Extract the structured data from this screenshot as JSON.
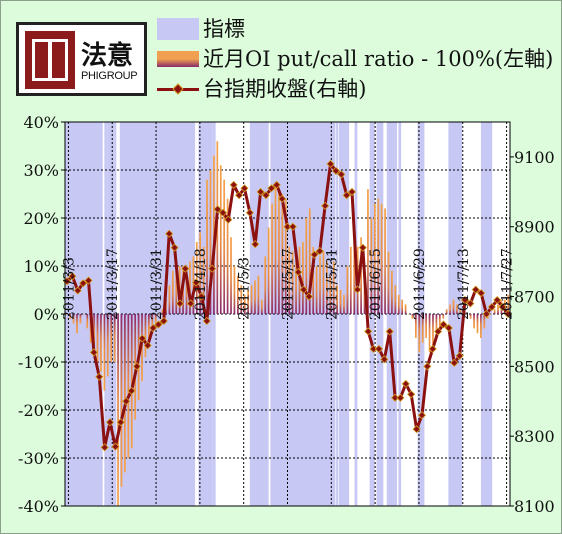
{
  "logo": {
    "name": "法意",
    "sub": "PHIGROUP"
  },
  "legend": {
    "band_label": "指標",
    "bar_label": "近月OI put/call ratio - 100%(左軸)",
    "line_label": "台指期收盤(右軸)"
  },
  "chart_data": {
    "type": "bar",
    "x_tick_labels": [
      "2011/3/3",
      "2011/3/17",
      "2011/3/31",
      "2011/4/18",
      "2011/5/3",
      "2011/5/17",
      "2011/5/31",
      "2011/6/15",
      "2011/6/29",
      "2011/7/13",
      "2011/7/27"
    ],
    "y_left": {
      "min": -40,
      "max": 40,
      "step": 10,
      "unit": "%"
    },
    "y_left_tick_labels": [
      "-40%",
      "-30%",
      "-20%",
      "-10%",
      "0%",
      "10%",
      "20%",
      "30%",
      "40%"
    ],
    "y_right": {
      "min": 8100,
      "max": 9200
    },
    "y_right_tick_labels": [
      "8100",
      "8300",
      "8500",
      "8700",
      "8900",
      "9100"
    ],
    "y_right_tick_values": [
      8100,
      8300,
      8500,
      8700,
      8900,
      9100
    ],
    "series": [
      {
        "name": "指標",
        "type": "band",
        "color": "#c8c8f5",
        "ranges": [
          [
            0,
            11
          ],
          [
            11.5,
            12.5
          ],
          [
            12.5,
            14.5
          ],
          [
            14.5,
            15
          ],
          [
            16,
            38
          ],
          [
            39,
            43
          ],
          [
            43,
            44
          ],
          [
            54,
            59.5
          ],
          [
            60,
            79
          ],
          [
            79.2,
            79.8
          ],
          [
            80,
            83
          ],
          [
            84.6,
            85.4
          ],
          [
            89,
            90.5
          ],
          [
            91,
            93
          ],
          [
            94,
            97
          ],
          [
            97.4,
            98.2
          ],
          [
            103,
            105
          ],
          [
            112,
            116
          ],
          [
            121.5,
            124.8
          ]
        ]
      },
      {
        "name": "近月OI put/call ratio - 100%(左軸)",
        "type": "bar",
        "values": [
          0,
          -1,
          -2,
          -4,
          -2,
          0,
          -3,
          -6,
          -8,
          -10,
          -12,
          -16,
          -13,
          -10,
          -10,
          -40,
          -36,
          -33,
          -30,
          -28,
          -22,
          -18,
          -14,
          -9,
          -6,
          -4,
          -2,
          0,
          1,
          3,
          6,
          9,
          9,
          10,
          10,
          10,
          11,
          12,
          15,
          17,
          14,
          28,
          30,
          33,
          36,
          31,
          28,
          24,
          16,
          10,
          8,
          6,
          4,
          5,
          6,
          7,
          8,
          3,
          12,
          18,
          23,
          27,
          26,
          25,
          24,
          14,
          13,
          12,
          14,
          15,
          20,
          22,
          14,
          10,
          12,
          13,
          11,
          8,
          11,
          6,
          5,
          4,
          10,
          14,
          16,
          14,
          16,
          10,
          26,
          20,
          23,
          24,
          23,
          22,
          13,
          9,
          6,
          4,
          3,
          2,
          0,
          -1,
          -5,
          -8,
          -6,
          -5,
          -8,
          -7,
          -5,
          -3,
          -1,
          1,
          2,
          3,
          2,
          1,
          1,
          0,
          -1,
          -3,
          -4,
          -5,
          -3,
          -1,
          0,
          1,
          2,
          3,
          3,
          4
        ]
      },
      {
        "name": "台指期收盤(右軸)",
        "type": "line",
        "color": "#8b1010",
        "values": [
          8744,
          8758,
          8717,
          8738,
          8746,
          8540,
          8470,
          8268,
          8340,
          8270,
          8340,
          8400,
          8430,
          8500,
          8580,
          8560,
          8610,
          8620,
          8630,
          8880,
          8840,
          8680,
          8780,
          8680,
          8740,
          8700,
          8630,
          8780,
          8950,
          8940,
          8920,
          9020,
          8990,
          9010,
          8940,
          8850,
          9000,
          8990,
          9010,
          9020,
          8980,
          8900,
          8900,
          8770,
          8720,
          8700,
          8820,
          8830,
          8960,
          9080,
          9060,
          9050,
          8990,
          9000,
          8720,
          8840,
          8600,
          8550,
          8550,
          8520,
          8600,
          8410,
          8410,
          8450,
          8420,
          8320,
          8360,
          8500,
          8550,
          8600,
          8620,
          8610,
          8510,
          8530,
          8690,
          8680,
          8720,
          8710,
          8650,
          8670,
          8690,
          8670,
          8650
        ]
      }
    ]
  }
}
